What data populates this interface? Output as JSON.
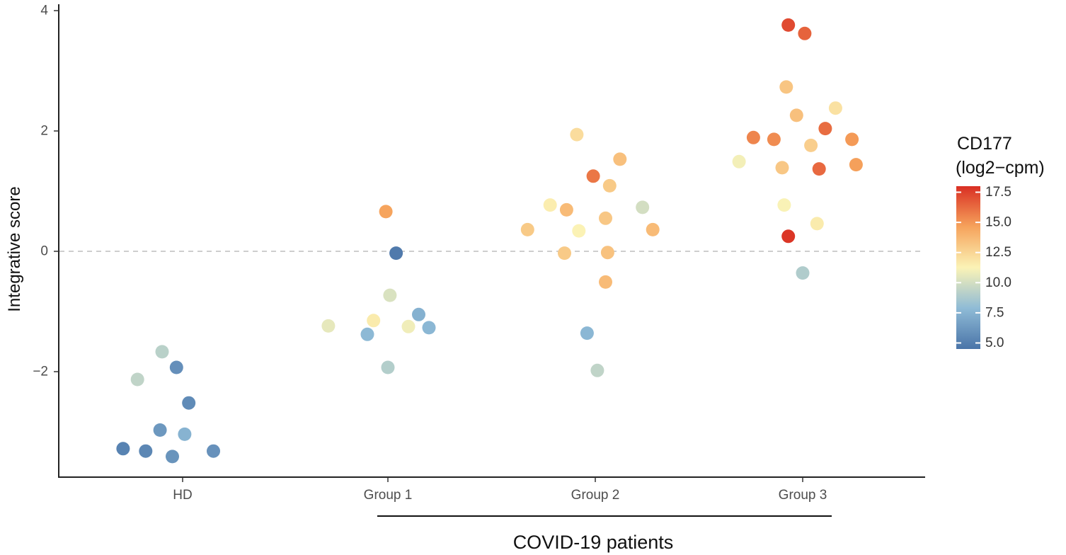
{
  "chart_data": {
    "type": "scatter",
    "title": "",
    "xlabel": "",
    "ylabel": "Integrative score",
    "categories": [
      "HD",
      "Group 1",
      "Group 2",
      "Group 3"
    ],
    "ylim": [
      -3.75,
      4.1
    ],
    "y_ticks": [
      "4",
      "2",
      "0",
      "−2"
    ],
    "reference_line": {
      "y": 0,
      "style": "dashed"
    },
    "group_bracket": {
      "label": "COVID-19 patients",
      "from": "Group 1",
      "to": "Group 3"
    },
    "legend": {
      "title_line1": "CD177",
      "title_line2": "(log2−cpm)",
      "ticks": [
        "17.5",
        "15.0",
        "12.5",
        "10.0",
        "7.5",
        "5.0"
      ],
      "range": [
        4.5,
        18.0
      ],
      "position": "right"
    },
    "colors": {
      "low": "#4a74a8",
      "mid_low": "#8fbbd6",
      "mid": "#fbf3b6",
      "mid_high": "#f6a35c",
      "high": "#d92f23"
    },
    "series": [
      {
        "group": "HD",
        "points": [
          {
            "x": -0.29,
            "y": -3.28,
            "cd177": 5.2
          },
          {
            "x": -0.18,
            "y": -3.32,
            "cd177": 5.4
          },
          {
            "x": -0.22,
            "y": -2.13,
            "cd177": 9.4
          },
          {
            "x": -0.1,
            "y": -1.67,
            "cd177": 9.2
          },
          {
            "x": -0.03,
            "y": -1.93,
            "cd177": 5.8
          },
          {
            "x": 0.03,
            "y": -2.52,
            "cd177": 5.6
          },
          {
            "x": -0.11,
            "y": -2.97,
            "cd177": 6.2
          },
          {
            "x": -0.05,
            "y": -3.41,
            "cd177": 6.0
          },
          {
            "x": 0.01,
            "y": -3.04,
            "cd177": 7.5
          },
          {
            "x": 0.15,
            "y": -3.32,
            "cd177": 5.9
          }
        ]
      },
      {
        "group": "Group 1",
        "points": [
          {
            "x": -0.01,
            "y": 0.66,
            "cd177": 14.6
          },
          {
            "x": 0.04,
            "y": -0.03,
            "cd177": 4.8
          },
          {
            "x": -0.29,
            "y": -1.24,
            "cd177": 10.6
          },
          {
            "x": -0.1,
            "y": -1.38,
            "cd177": 7.8
          },
          {
            "x": 0.01,
            "y": -0.73,
            "cd177": 10.2
          },
          {
            "x": -0.07,
            "y": -1.15,
            "cd177": 11.6
          },
          {
            "x": 0.1,
            "y": -1.25,
            "cd177": 10.9
          },
          {
            "x": 0.15,
            "y": -1.05,
            "cd177": 7.4
          },
          {
            "x": 0.2,
            "y": -1.27,
            "cd177": 7.7
          },
          {
            "x": 0.0,
            "y": -1.93,
            "cd177": 9.0
          }
        ]
      },
      {
        "group": "Group 2",
        "points": [
          {
            "x": -0.33,
            "y": 0.36,
            "cd177": 13.0
          },
          {
            "x": -0.22,
            "y": 0.77,
            "cd177": 11.5
          },
          {
            "x": -0.14,
            "y": 0.69,
            "cd177": 13.6
          },
          {
            "x": -0.08,
            "y": 0.34,
            "cd177": 11.3
          },
          {
            "x": -0.15,
            "y": -0.03,
            "cd177": 13.0
          },
          {
            "x": -0.09,
            "y": 1.94,
            "cd177": 12.2
          },
          {
            "x": -0.01,
            "y": 1.25,
            "cd177": 15.9
          },
          {
            "x": 0.05,
            "y": 0.55,
            "cd177": 13.1
          },
          {
            "x": 0.07,
            "y": 1.09,
            "cd177": 13.0
          },
          {
            "x": 0.12,
            "y": 1.53,
            "cd177": 13.4
          },
          {
            "x": 0.06,
            "y": -0.02,
            "cd177": 13.3
          },
          {
            "x": 0.05,
            "y": -0.51,
            "cd177": 13.6
          },
          {
            "x": 0.23,
            "y": 0.73,
            "cd177": 10.0
          },
          {
            "x": 0.28,
            "y": 0.36,
            "cd177": 13.6
          },
          {
            "x": -0.04,
            "y": -1.36,
            "cd177": 7.7
          },
          {
            "x": 0.01,
            "y": -1.98,
            "cd177": 9.4
          }
        ]
      },
      {
        "group": "Group 3",
        "points": [
          {
            "x": -0.31,
            "y": 1.49,
            "cd177": 11.0
          },
          {
            "x": -0.24,
            "y": 1.89,
            "cd177": 15.5
          },
          {
            "x": -0.14,
            "y": 1.86,
            "cd177": 15.3
          },
          {
            "x": -0.08,
            "y": 2.73,
            "cd177": 13.2
          },
          {
            "x": -0.1,
            "y": 1.39,
            "cd177": 13.1
          },
          {
            "x": -0.09,
            "y": 0.77,
            "cd177": 11.2
          },
          {
            "x": -0.07,
            "y": 3.76,
            "cd177": 17.2
          },
          {
            "x": 0.01,
            "y": 3.62,
            "cd177": 16.5
          },
          {
            "x": -0.03,
            "y": 2.26,
            "cd177": 13.4
          },
          {
            "x": 0.04,
            "y": 1.76,
            "cd177": 12.8
          },
          {
            "x": 0.08,
            "y": 1.37,
            "cd177": 16.3
          },
          {
            "x": 0.11,
            "y": 2.04,
            "cd177": 16.2
          },
          {
            "x": 0.16,
            "y": 2.38,
            "cd177": 12.0
          },
          {
            "x": 0.24,
            "y": 1.86,
            "cd177": 14.9
          },
          {
            "x": 0.26,
            "y": 1.44,
            "cd177": 14.7
          },
          {
            "x": 0.07,
            "y": 0.46,
            "cd177": 11.6
          },
          {
            "x": -0.07,
            "y": 0.25,
            "cd177": 17.8
          },
          {
            "x": 0.0,
            "y": -0.36,
            "cd177": 8.9
          }
        ]
      }
    ]
  }
}
